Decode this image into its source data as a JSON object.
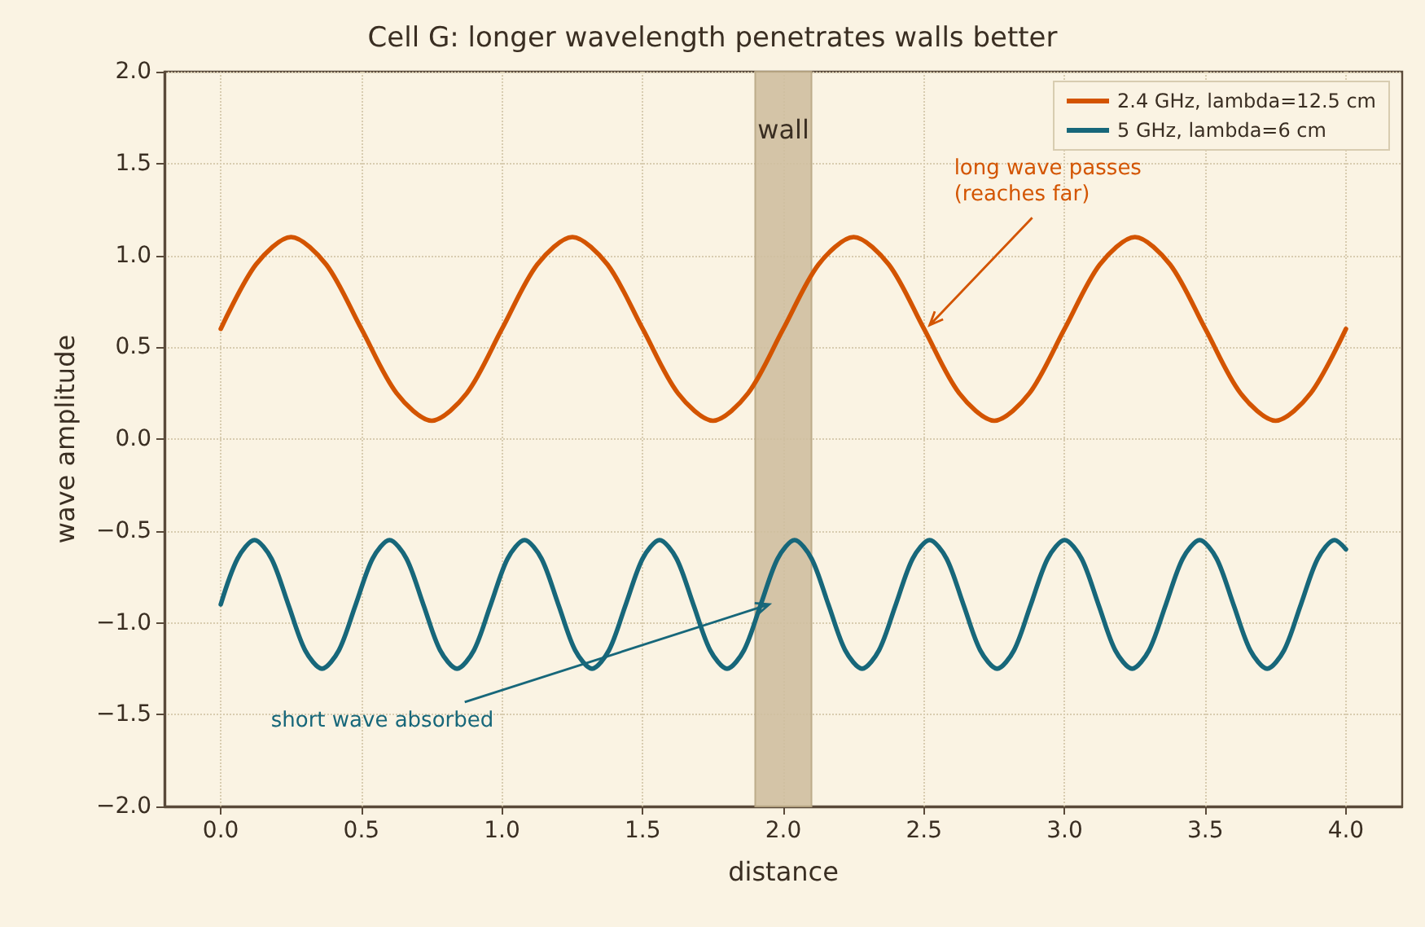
{
  "chart_data": {
    "type": "line",
    "title": "Cell G: longer wavelength penetrates walls better",
    "xlabel": "distance",
    "ylabel": "wave amplitude",
    "series": [
      {
        "name": "2.4 GHz, lambda=12.5 cm",
        "color": "#d35400",
        "x": [
          0,
          0.125,
          0.25,
          0.375,
          0.5,
          0.625,
          0.75,
          0.875,
          1,
          1.125,
          1.25,
          1.375,
          1.5,
          1.625,
          1.75,
          1.875,
          2,
          2.125,
          2.25,
          2.375,
          2.5,
          2.625,
          2.75,
          2.875,
          3,
          3.125,
          3.25,
          3.375,
          3.5,
          3.625,
          3.75,
          3.875,
          4
        ],
        "values": [
          0.6,
          0.95,
          1.1,
          0.95,
          0.6,
          0.25,
          0.1,
          0.25,
          0.6,
          0.95,
          1.1,
          0.95,
          0.6,
          0.25,
          0.1,
          0.25,
          0.6,
          0.95,
          1.1,
          0.95,
          0.6,
          0.25,
          0.1,
          0.25,
          0.6,
          0.95,
          1.1,
          0.95,
          0.6,
          0.25,
          0.1,
          0.25,
          0.6
        ]
      },
      {
        "name": "5 GHz, lambda=6 cm",
        "color": "#17677a",
        "x": [
          0,
          0.06,
          0.12,
          0.18,
          0.24,
          0.3,
          0.36,
          0.42,
          0.48,
          0.54,
          0.6,
          0.66,
          0.72,
          0.78,
          0.84,
          0.9,
          0.96,
          1.02,
          1.08,
          1.14,
          1.2,
          1.26,
          1.32,
          1.38,
          1.44,
          1.5,
          1.56,
          1.62,
          1.68,
          1.74,
          1.8,
          1.86,
          1.92,
          1.98,
          2.04,
          2.1,
          2.16,
          2.22,
          2.28,
          2.34,
          2.4,
          2.46,
          2.52,
          2.58,
          2.64,
          2.7,
          2.76,
          2.82,
          2.88,
          2.94,
          3.0,
          3.06,
          3.12,
          3.18,
          3.24,
          3.3,
          3.36,
          3.42,
          3.48,
          3.54,
          3.6,
          3.66,
          3.72,
          3.78,
          3.84,
          3.9,
          3.96,
          4.0
        ],
        "values": [
          -0.9,
          -0.65,
          -0.55,
          -0.65,
          -0.9,
          -1.15,
          -1.25,
          -1.15,
          -0.9,
          -0.65,
          -0.55,
          -0.65,
          -0.9,
          -1.15,
          -1.25,
          -1.15,
          -0.9,
          -0.65,
          -0.55,
          -0.65,
          -0.9,
          -1.15,
          -1.25,
          -1.15,
          -0.9,
          -0.65,
          -0.55,
          -0.65,
          -0.9,
          -1.15,
          -1.25,
          -1.15,
          -0.9,
          -0.65,
          -0.55,
          -0.65,
          -0.9,
          -1.15,
          -1.25,
          -1.15,
          -0.9,
          -0.65,
          -0.55,
          -0.65,
          -0.9,
          -1.15,
          -1.25,
          -1.15,
          -0.9,
          -0.65,
          -0.55,
          -0.65,
          -0.9,
          -1.15,
          -1.25,
          -1.15,
          -0.9,
          -0.65,
          -0.55,
          -0.65,
          -0.9,
          -1.15,
          -1.25,
          -1.15,
          -0.9,
          -0.65,
          -0.55,
          -0.6
        ]
      }
    ],
    "xlim": [
      -0.2,
      4.2
    ],
    "xticks": [
      {
        "value": 0,
        "label": "0.0"
      },
      {
        "value": 0.5,
        "label": "0.5"
      },
      {
        "value": 1,
        "label": "1.0"
      },
      {
        "value": 1.5,
        "label": "1.5"
      },
      {
        "value": 2,
        "label": "2.0"
      },
      {
        "value": 2.5,
        "label": "2.5"
      },
      {
        "value": 3,
        "label": "3.0"
      },
      {
        "value": 3.5,
        "label": "3.5"
      },
      {
        "value": 4,
        "label": "4.0"
      }
    ],
    "ylim": [
      -2,
      2
    ],
    "yticks": [
      {
        "value": -2,
        "label": "−2.0"
      },
      {
        "value": -1.5,
        "label": "−1.5"
      },
      {
        "value": -1,
        "label": "−1.0"
      },
      {
        "value": -0.5,
        "label": "−0.5"
      },
      {
        "value": 0,
        "label": "0.0"
      },
      {
        "value": 0.5,
        "label": "0.5"
      },
      {
        "value": 1,
        "label": "1.0"
      },
      {
        "value": 1.5,
        "label": "1.5"
      },
      {
        "value": 2,
        "label": "2.0"
      }
    ],
    "bands": [
      {
        "axis": "x",
        "from": 1.9,
        "to": 2.1,
        "label": "wall",
        "color": "#cfbfa0"
      }
    ],
    "annotations": [
      {
        "text": "long wave passes\n(reaches far)",
        "x": 2.52,
        "y": 0.62
      },
      {
        "text": "short wave absorbed",
        "x": 1.95,
        "y": -0.9
      }
    ],
    "grid": true,
    "legend": "top right",
    "line_style": "solid",
    "marker": "none"
  }
}
